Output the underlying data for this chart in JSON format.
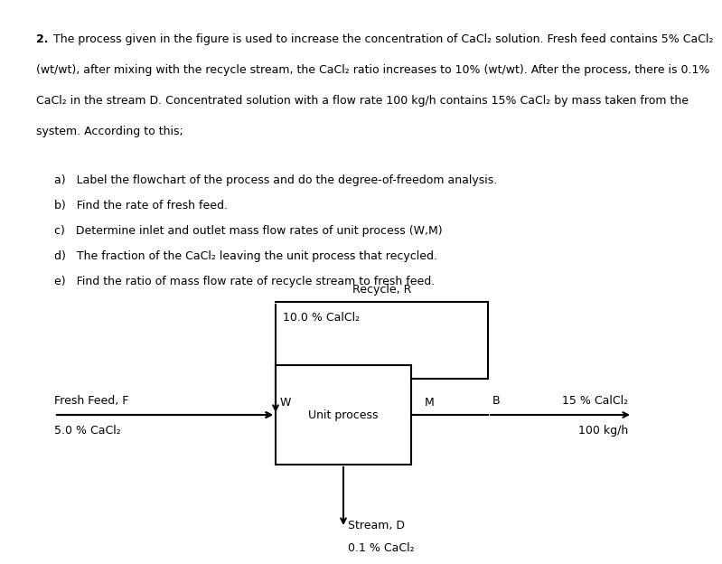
{
  "bg_color": "#ffffff",
  "text_color": "#000000",
  "problem_text_lines": [
    "2. The process given in the figure is used to increase the concentration of CaCl₂ solution. Fresh feed contains 5% CaCl₂",
    "(wt/wt), after mixing with the recycle stream, the CaCl₂ ratio increases to 10% (wt/wt). After the process, there is 0.1%",
    "CaCl₂ in the stream D. Concentrated solution with a flow rate 100 kg/h contains 15% CaCl₂ by mass taken from the",
    "system. According to this;"
  ],
  "list_items": [
    "a)   Label the flowchart of the process and do the degree-of-freedom analysis.",
    "b)   Find the rate of fresh feed.",
    "c)   Determine inlet and outlet mass flow rates of unit process (W,M)",
    "d)   The fraction of the CaCl₂ leaving the unit process that recycled.",
    "e)   Find the ratio of mass flow rate of recycle stream to fresh feed."
  ],
  "diagram": {
    "box_label": "Unit process",
    "recycle_label": "Recycle, R",
    "recycle_conc": "10.0 % CalCl₂",
    "fresh_feed_label": "Fresh Feed, F",
    "fresh_feed_conc": "5.0 % CaCl₂",
    "stream_w_label": "W",
    "stream_m_label": "M",
    "stream_b_label": "B",
    "product_conc1": "15 % CalCl₂",
    "product_flow": "100 kg/h",
    "drain_label": "Stream, D",
    "drain_conc": "0.1 % CaCl₂"
  }
}
